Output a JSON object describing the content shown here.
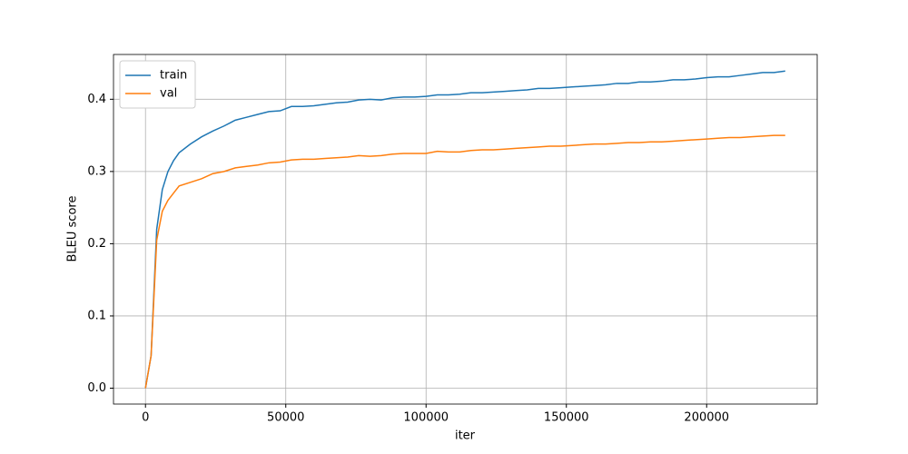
{
  "chart_data": {
    "type": "line",
    "xlabel": "iter",
    "ylabel": "BLEU score",
    "x": [
      0,
      2000,
      4000,
      6000,
      8000,
      10000,
      12000,
      16000,
      20000,
      24000,
      28000,
      32000,
      36000,
      40000,
      44000,
      48000,
      52000,
      56000,
      60000,
      64000,
      68000,
      72000,
      76000,
      80000,
      84000,
      88000,
      92000,
      96000,
      100000,
      104000,
      108000,
      112000,
      116000,
      120000,
      124000,
      128000,
      132000,
      136000,
      140000,
      144000,
      148000,
      152000,
      156000,
      160000,
      164000,
      168000,
      172000,
      176000,
      180000,
      184000,
      188000,
      192000,
      196000,
      200000,
      204000,
      208000,
      212000,
      216000,
      220000,
      224000,
      228000
    ],
    "series": [
      {
        "name": "train",
        "color": "#1f77b4",
        "values": [
          0,
          0.045,
          0.22,
          0.275,
          0.3,
          0.315,
          0.326,
          0.338,
          0.348,
          0.356,
          0.363,
          0.371,
          0.375,
          0.379,
          0.383,
          0.384,
          0.39,
          0.39,
          0.391,
          0.393,
          0.395,
          0.396,
          0.399,
          0.4,
          0.399,
          0.402,
          0.403,
          0.403,
          0.404,
          0.406,
          0.406,
          0.407,
          0.409,
          0.409,
          0.41,
          0.411,
          0.412,
          0.413,
          0.415,
          0.415,
          0.416,
          0.417,
          0.418,
          0.419,
          0.42,
          0.422,
          0.422,
          0.424,
          0.424,
          0.425,
          0.427,
          0.427,
          0.428,
          0.43,
          0.431,
          0.431,
          0.433,
          0.435,
          0.437,
          0.437,
          0.439
        ]
      },
      {
        "name": "val",
        "color": "#ff7f0e",
        "values": [
          0,
          0.045,
          0.205,
          0.245,
          0.26,
          0.27,
          0.28,
          0.285,
          0.29,
          0.297,
          0.3,
          0.305,
          0.307,
          0.309,
          0.312,
          0.313,
          0.316,
          0.317,
          0.317,
          0.318,
          0.319,
          0.32,
          0.322,
          0.321,
          0.322,
          0.324,
          0.325,
          0.325,
          0.325,
          0.328,
          0.327,
          0.327,
          0.329,
          0.33,
          0.33,
          0.331,
          0.332,
          0.333,
          0.334,
          0.335,
          0.335,
          0.336,
          0.337,
          0.338,
          0.338,
          0.339,
          0.34,
          0.34,
          0.341,
          0.341,
          0.342,
          0.343,
          0.344,
          0.345,
          0.346,
          0.347,
          0.347,
          0.348,
          0.349,
          0.35,
          0.35
        ]
      }
    ],
    "xlim": [
      -11400,
      239400
    ],
    "ylim": [
      -0.022,
      0.462
    ],
    "xticks": [
      0,
      50000,
      100000,
      150000,
      200000
    ],
    "yticks": [
      {
        "value": 0,
        "label": "0.0"
      },
      0.1,
      0.2,
      0.3,
      0.4
    ],
    "grid": true,
    "legend": "upper-left"
  }
}
